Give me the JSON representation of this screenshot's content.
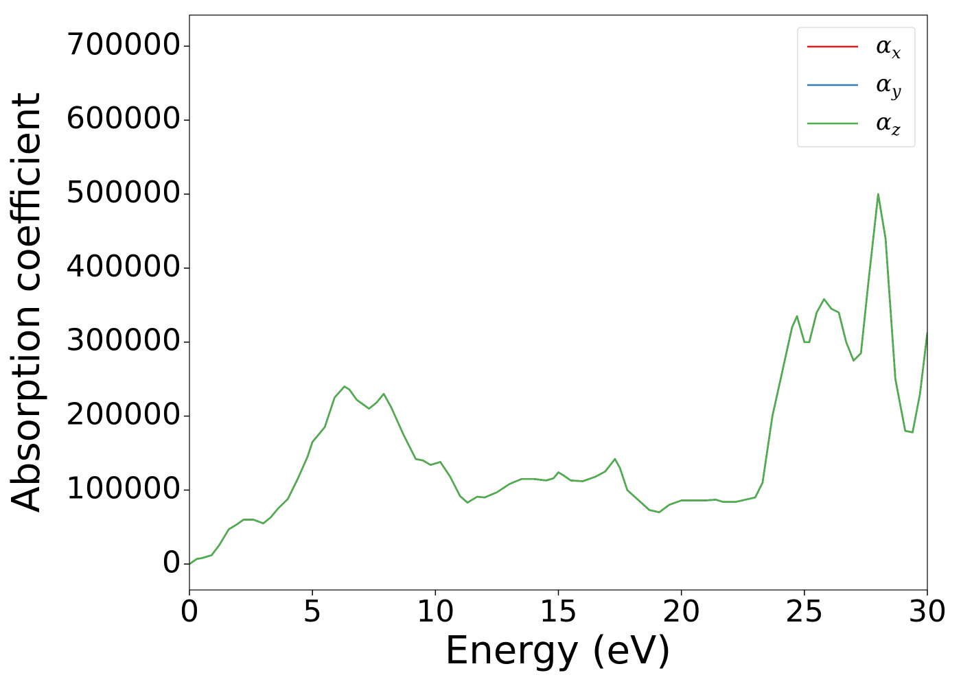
{
  "chart_data": {
    "type": "line",
    "xlabel": "Energy (eV)",
    "ylabel": "Absorption coefficient",
    "x": [
      0,
      0.3,
      0.5,
      0.9,
      1.2,
      1.6,
      1.9,
      2.2,
      2.6,
      3.0,
      3.3,
      3.6,
      4.0,
      4.4,
      4.8,
      5.0,
      5.5,
      5.9,
      6.3,
      6.5,
      6.8,
      7.3,
      7.6,
      7.9,
      8.2,
      8.7,
      9.2,
      9.5,
      9.8,
      10.2,
      10.6,
      11.0,
      11.3,
      11.7,
      12.0,
      12.5,
      13.0,
      13.5,
      14.0,
      14.5,
      14.8,
      15.0,
      15.2,
      15.5,
      16.0,
      16.5,
      16.9,
      17.3,
      17.5,
      17.8,
      18.3,
      18.7,
      19.1,
      19.5,
      20.0,
      20.5,
      21.0,
      21.4,
      21.7,
      22.2,
      22.6,
      23.0,
      23.3,
      23.7,
      24.1,
      24.5,
      24.7,
      25.0,
      25.2,
      25.5,
      25.8,
      26.1,
      26.4,
      26.7,
      27.0,
      27.3,
      27.6,
      28.0,
      28.3,
      28.7,
      29.1,
      29.4,
      29.7,
      30.0
    ],
    "series": [
      {
        "name": "αx",
        "color": "#e41a1c",
        "values": [
          0,
          7000,
          8000,
          12000,
          25000,
          47000,
          53000,
          60000,
          60000,
          55000,
          63000,
          75000,
          88000,
          115000,
          145000,
          165000,
          185000,
          225000,
          240000,
          236000,
          222000,
          210000,
          218000,
          230000,
          212000,
          175000,
          142000,
          140000,
          134000,
          138000,
          118000,
          92000,
          83000,
          91000,
          90000,
          97000,
          108000,
          115000,
          115000,
          113000,
          116000,
          124000,
          120000,
          113000,
          112000,
          118000,
          125000,
          142000,
          130000,
          100000,
          85000,
          73000,
          70000,
          80000,
          86000,
          86000,
          86000,
          87000,
          84000,
          84000,
          87000,
          90000,
          110000,
          200000,
          260000,
          320000,
          335000,
          300000,
          300000,
          340000,
          358000,
          345000,
          340000,
          300000,
          275000,
          285000,
          380000,
          500000,
          440000,
          250000,
          180000,
          178000,
          230000,
          313000
        ]
      },
      {
        "name": "αy",
        "color": "#377eb8",
        "values": [
          0,
          7000,
          8000,
          12000,
          25000,
          47000,
          53000,
          60000,
          60000,
          55000,
          63000,
          75000,
          88000,
          115000,
          145000,
          165000,
          185000,
          225000,
          240000,
          236000,
          222000,
          210000,
          218000,
          230000,
          212000,
          175000,
          142000,
          140000,
          134000,
          138000,
          118000,
          92000,
          83000,
          91000,
          90000,
          97000,
          108000,
          115000,
          115000,
          113000,
          116000,
          124000,
          120000,
          113000,
          112000,
          118000,
          125000,
          142000,
          130000,
          100000,
          85000,
          73000,
          70000,
          80000,
          86000,
          86000,
          86000,
          87000,
          84000,
          84000,
          87000,
          90000,
          110000,
          200000,
          260000,
          320000,
          335000,
          300000,
          300000,
          340000,
          358000,
          345000,
          340000,
          300000,
          275000,
          285000,
          380000,
          500000,
          440000,
          250000,
          180000,
          178000,
          230000,
          313000
        ]
      },
      {
        "name": "αz",
        "color": "#4daf4a",
        "values": [
          0,
          7000,
          8000,
          12000,
          25000,
          47000,
          53000,
          60000,
          60000,
          55000,
          63000,
          75000,
          88000,
          115000,
          145000,
          165000,
          185000,
          225000,
          240000,
          236000,
          222000,
          210000,
          218000,
          230000,
          212000,
          175000,
          142000,
          140000,
          134000,
          138000,
          118000,
          92000,
          83000,
          91000,
          90000,
          97000,
          108000,
          115000,
          115000,
          113000,
          116000,
          124000,
          120000,
          113000,
          112000,
          118000,
          125000,
          142000,
          130000,
          100000,
          85000,
          73000,
          70000,
          80000,
          86000,
          86000,
          86000,
          87000,
          84000,
          84000,
          87000,
          90000,
          110000,
          200000,
          260000,
          320000,
          335000,
          300000,
          300000,
          340000,
          358000,
          345000,
          340000,
          300000,
          275000,
          285000,
          380000,
          500000,
          440000,
          250000,
          180000,
          178000,
          230000,
          313000
        ]
      }
    ],
    "xlim": [
      0,
      30
    ],
    "xticks": [
      0,
      5,
      10,
      15,
      20,
      25,
      30
    ],
    "ylim": [
      -35000,
      742000
    ],
    "yticks": [
      0,
      100000,
      200000,
      300000,
      400000,
      500000,
      600000,
      700000
    ],
    "grid": false,
    "legend": "upper right"
  }
}
